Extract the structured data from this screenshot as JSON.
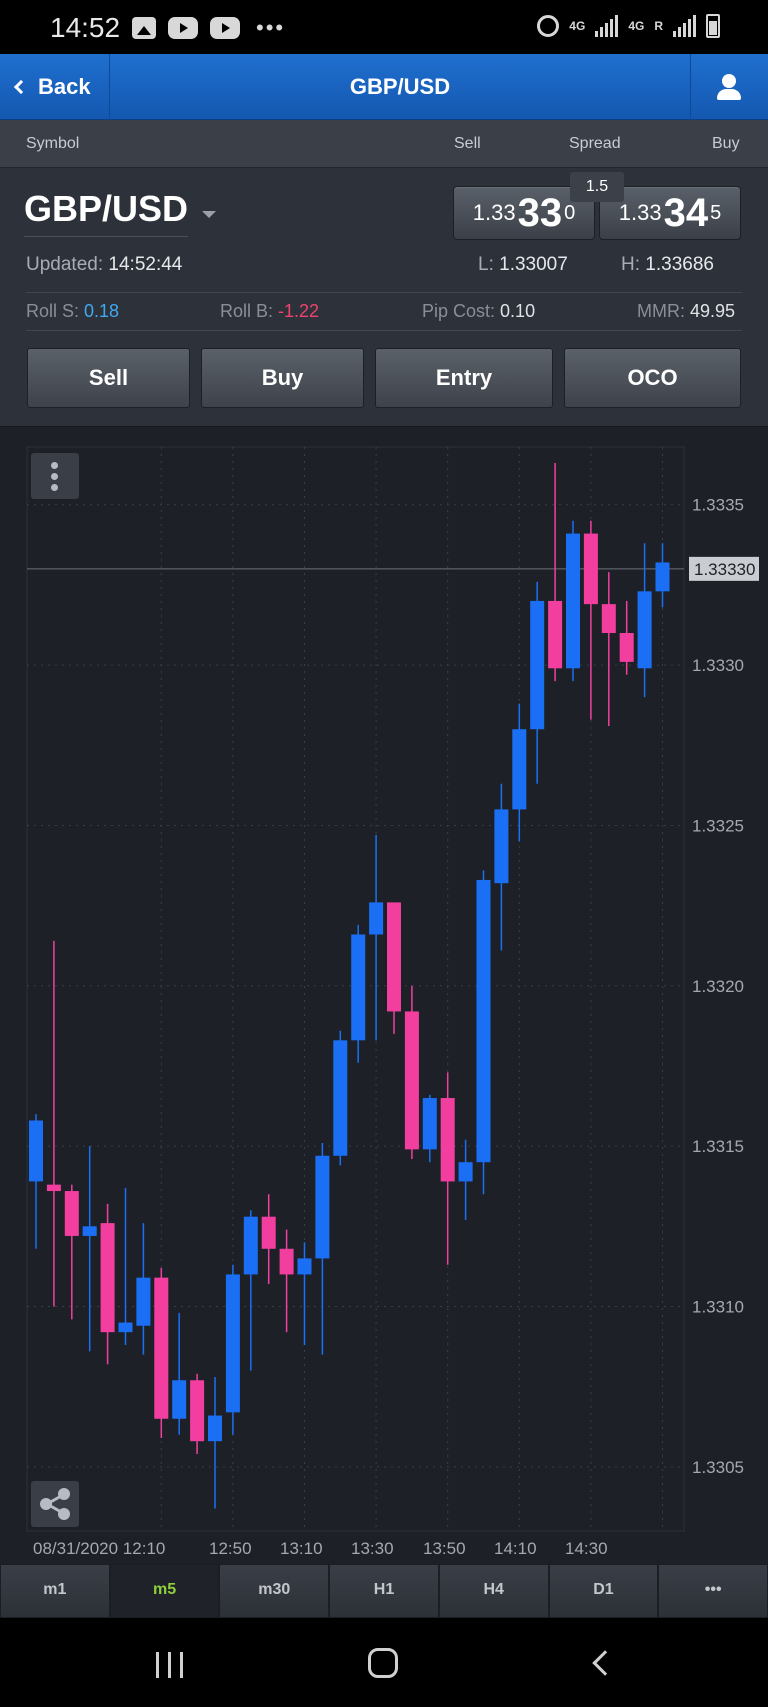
{
  "status_bar": {
    "time": "14:52",
    "left_icons": [
      "image-icon",
      "youtube-icon",
      "youtube-icon",
      "more-dots-icon"
    ],
    "right_icons": [
      "alarm-icon",
      "4g-signal-icon",
      "4g-r-signal-icon",
      "battery-icon"
    ],
    "net1": "4G",
    "net2": "4G",
    "roaming": "R"
  },
  "nav": {
    "back_label": "Back",
    "title": "GBP/USD",
    "user_icon": "user-icon"
  },
  "columns": {
    "symbol": "Symbol",
    "sell": "Sell",
    "spread": "Spread",
    "buy": "Buy"
  },
  "quote": {
    "symbol": "GBP/USD",
    "spread": "1.5",
    "sell": {
      "big_prefix": "1.33",
      "pips": "33",
      "fraction": "0"
    },
    "buy": {
      "big_prefix": "1.33",
      "pips": "34",
      "fraction": "5"
    },
    "updated_label": "Updated:",
    "updated_time": "14:52:44",
    "low_label": "L:",
    "low_value": "1.33007",
    "high_label": "H:",
    "high_value": "1.33686",
    "roll_s_label": "Roll S:",
    "roll_s_value": "0.18",
    "roll_b_label": "Roll B:",
    "roll_b_value": "-1.22",
    "pip_cost_label": "Pip Cost:",
    "pip_cost_value": "0.10",
    "mmr_label": "MMR:",
    "mmr_value": "49.95",
    "colors": {
      "positive": "#41a8f0",
      "negative": "#f0426e"
    }
  },
  "actions": {
    "sell": "Sell",
    "buy": "Buy",
    "entry": "Entry",
    "oco": "OCO"
  },
  "chart_data": {
    "type": "candlestick",
    "ylim": [
      1.3303,
      1.33368
    ],
    "y_ticks": [
      "1.3335",
      "1.3330",
      "1.3325",
      "1.3320",
      "1.3315",
      "1.3310",
      "1.3305"
    ],
    "y_tick_values": [
      1.3335,
      1.333,
      1.3325,
      1.332,
      1.3315,
      1.331,
      1.3305
    ],
    "current_price": 1.3333,
    "current_price_label": "1.33330",
    "x_labels": [
      "08/31/2020 12:10",
      "12:50",
      "13:10",
      "13:30",
      "13:50",
      "14:10",
      "14:30"
    ],
    "grid": true,
    "colors": {
      "up": "#1a6ff5",
      "down": "#f23f9f"
    },
    "candles": [
      {
        "o": 1.33139,
        "h": 1.3316,
        "l": 1.33118,
        "c": 1.33158
      },
      {
        "o": 1.33138,
        "h": 1.33214,
        "l": 1.331,
        "c": 1.33136
      },
      {
        "o": 1.33136,
        "h": 1.33138,
        "l": 1.33096,
        "c": 1.33122
      },
      {
        "o": 1.33122,
        "h": 1.3315,
        "l": 1.33086,
        "c": 1.33125
      },
      {
        "o": 1.33126,
        "h": 1.33132,
        "l": 1.33082,
        "c": 1.33092
      },
      {
        "o": 1.33092,
        "h": 1.33137,
        "l": 1.33088,
        "c": 1.33095
      },
      {
        "o": 1.33094,
        "h": 1.33126,
        "l": 1.33085,
        "c": 1.33109
      },
      {
        "o": 1.33109,
        "h": 1.33112,
        "l": 1.33059,
        "c": 1.33065
      },
      {
        "o": 1.33065,
        "h": 1.33098,
        "l": 1.3306,
        "c": 1.33077
      },
      {
        "o": 1.33077,
        "h": 1.33079,
        "l": 1.33054,
        "c": 1.33058
      },
      {
        "o": 1.33058,
        "h": 1.33078,
        "l": 1.33037,
        "c": 1.33066
      },
      {
        "o": 1.33067,
        "h": 1.33113,
        "l": 1.3306,
        "c": 1.3311
      },
      {
        "o": 1.3311,
        "h": 1.3313,
        "l": 1.3308,
        "c": 1.33128
      },
      {
        "o": 1.33128,
        "h": 1.33135,
        "l": 1.33107,
        "c": 1.33118
      },
      {
        "o": 1.33118,
        "h": 1.33124,
        "l": 1.33092,
        "c": 1.3311
      },
      {
        "o": 1.3311,
        "h": 1.3312,
        "l": 1.33088,
        "c": 1.33115
      },
      {
        "o": 1.33115,
        "h": 1.33151,
        "l": 1.33085,
        "c": 1.33147
      },
      {
        "o": 1.33147,
        "h": 1.33186,
        "l": 1.33144,
        "c": 1.33183
      },
      {
        "o": 1.33183,
        "h": 1.33219,
        "l": 1.33176,
        "c": 1.33216
      },
      {
        "o": 1.33216,
        "h": 1.33247,
        "l": 1.33183,
        "c": 1.33226
      },
      {
        "o": 1.33226,
        "h": 1.33226,
        "l": 1.33185,
        "c": 1.33192
      },
      {
        "o": 1.33192,
        "h": 1.332,
        "l": 1.33146,
        "c": 1.33149
      },
      {
        "o": 1.33149,
        "h": 1.33166,
        "l": 1.33145,
        "c": 1.33165
      },
      {
        "o": 1.33165,
        "h": 1.33173,
        "l": 1.33113,
        "c": 1.33139
      },
      {
        "o": 1.33139,
        "h": 1.33152,
        "l": 1.33127,
        "c": 1.33145
      },
      {
        "o": 1.33145,
        "h": 1.33236,
        "l": 1.33135,
        "c": 1.33233
      },
      {
        "o": 1.33232,
        "h": 1.33263,
        "l": 1.33211,
        "c": 1.33255
      },
      {
        "o": 1.33255,
        "h": 1.33288,
        "l": 1.33245,
        "c": 1.3328
      },
      {
        "o": 1.3328,
        "h": 1.33326,
        "l": 1.33263,
        "c": 1.3332
      },
      {
        "o": 1.3332,
        "h": 1.33363,
        "l": 1.33295,
        "c": 1.33299
      },
      {
        "o": 1.33299,
        "h": 1.33345,
        "l": 1.33295,
        "c": 1.33341
      },
      {
        "o": 1.33341,
        "h": 1.33345,
        "l": 1.33283,
        "c": 1.33319
      },
      {
        "o": 1.33319,
        "h": 1.33329,
        "l": 1.33281,
        "c": 1.3331
      },
      {
        "o": 1.3331,
        "h": 1.3332,
        "l": 1.33297,
        "c": 1.33301
      },
      {
        "o": 1.33299,
        "h": 1.33338,
        "l": 1.3329,
        "c": 1.33323
      },
      {
        "o": 1.33323,
        "h": 1.33338,
        "l": 1.33318,
        "c": 1.33332
      }
    ]
  },
  "chart_ui": {
    "menu_icon": "vertical-dots-icon",
    "share_icon": "share-icon"
  },
  "timeframes": [
    "m1",
    "m5",
    "m30",
    "H1",
    "H4",
    "D1",
    "•••"
  ],
  "active_timeframe": "m5",
  "colors": {
    "nav_blue": "#1a64c2",
    "panel": "#2d323a",
    "chart_bg": "#1d2127",
    "active_tf": "#8fcf3c"
  }
}
